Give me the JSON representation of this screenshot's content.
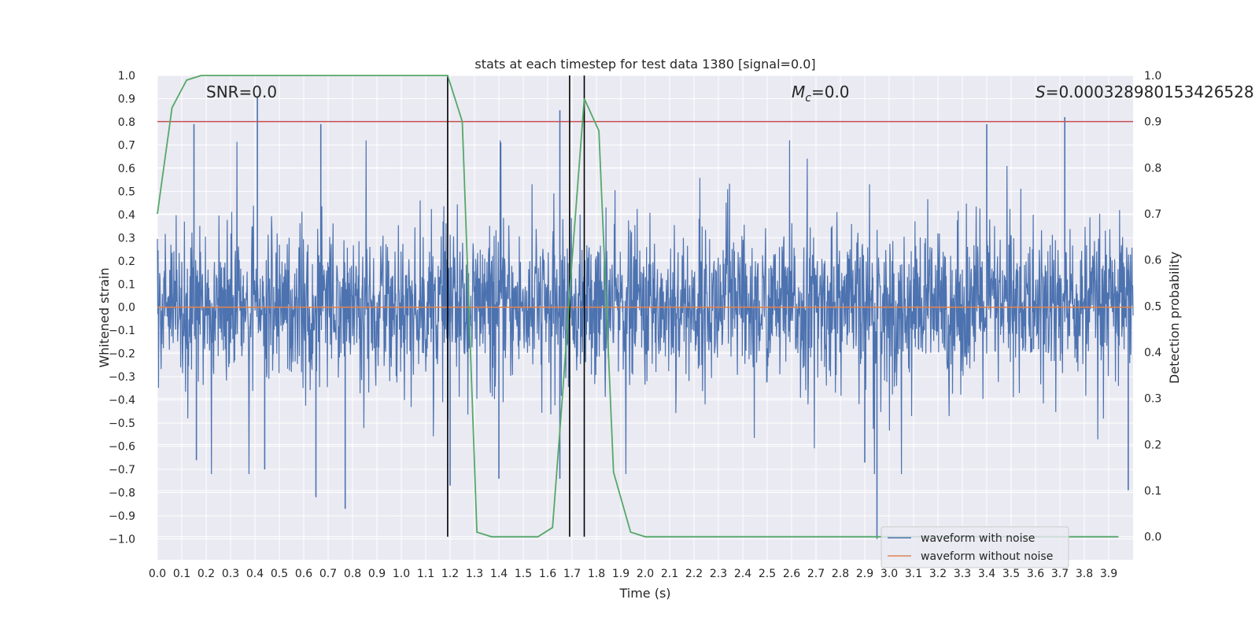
{
  "chart_data": {
    "type": "line",
    "title": "stats at each timestep for test data 1380 [signal=0.0]",
    "xlabel": "Time (s)",
    "ylabel": "Whitened strain",
    "y2label": "Detection probability",
    "xlim": [
      0.0,
      4.0
    ],
    "ylim": [
      -1.09,
      1.0
    ],
    "y2lim": [
      -0.05,
      1.0
    ],
    "x_ticks": [
      "0.0",
      "0.1",
      "0.2",
      "0.3",
      "0.4",
      "0.5",
      "0.6",
      "0.7",
      "0.8",
      "0.9",
      "1.0",
      "1.1",
      "1.2",
      "1.3",
      "1.4",
      "1.5",
      "1.6",
      "1.7",
      "1.8",
      "1.9",
      "2.0",
      "2.1",
      "2.2",
      "2.3",
      "2.4",
      "2.5",
      "2.6",
      "2.7",
      "2.8",
      "2.9",
      "3.0",
      "3.1",
      "3.2",
      "3.3",
      "3.4",
      "3.5",
      "3.6",
      "3.7",
      "3.8",
      "3.9"
    ],
    "y_ticks": [
      "1.0",
      "0.9",
      "0.8",
      "0.7",
      "0.6",
      "0.5",
      "0.4",
      "0.3",
      "0.2",
      "0.1",
      "0.0",
      "−0.1",
      "−0.2",
      "−0.3",
      "−0.4",
      "−0.5",
      "−0.6",
      "−0.7",
      "−0.8",
      "−0.9",
      "−1.0"
    ],
    "y2_ticks": [
      "1.0",
      "0.9",
      "0.8",
      "0.7",
      "0.6",
      "0.5",
      "0.4",
      "0.3",
      "0.2",
      "0.1",
      "0.0"
    ],
    "grid": true,
    "legend_position": "lower-right",
    "annotations": {
      "snr": "SNR=0.0",
      "mc_symbol": "M",
      "mc_sub": "c",
      "mc_value": "=0.0",
      "s_symbol": "S",
      "s_value": "=0.00032898015342652",
      "s_value_tail": "8"
    },
    "series": [
      {
        "name": "waveform with noise",
        "color": "#4c72b0",
        "axis": "left",
        "description_kind": "noise",
        "amplitude_core": 0.3,
        "peaks": [
          {
            "x": 0.41,
            "y": 0.91
          },
          {
            "x": 0.67,
            "y": 0.79
          },
          {
            "x": 0.65,
            "y": -0.82
          },
          {
            "x": 0.77,
            "y": -0.87
          },
          {
            "x": 1.65,
            "y": 0.85
          },
          {
            "x": 1.65,
            "y": -0.74
          },
          {
            "x": 2.95,
            "y": -1.0
          },
          {
            "x": 3.72,
            "y": 0.82
          },
          {
            "x": 3.4,
            "y": 0.79
          },
          {
            "x": 0.15,
            "y": 0.79
          },
          {
            "x": 0.16,
            "y": -0.66
          },
          {
            "x": 0.44,
            "y": -0.7
          },
          {
            "x": 1.2,
            "y": -0.77
          },
          {
            "x": 1.4,
            "y": -0.74
          },
          {
            "x": 2.9,
            "y": -0.67
          },
          {
            "x": 3.98,
            "y": -0.79
          }
        ]
      },
      {
        "name": "waveform without noise",
        "color": "#dd8452",
        "axis": "left",
        "x": [
          0.0,
          4.0
        ],
        "y": [
          0.0,
          0.0
        ]
      },
      {
        "name": "",
        "color": "#55a868",
        "axis": "right",
        "x": [
          0.0,
          0.06,
          0.12,
          0.18,
          0.25,
          0.31,
          0.37,
          0.43,
          0.49,
          0.55,
          0.62,
          0.68,
          0.74,
          0.8,
          0.86,
          0.92,
          0.98,
          1.05,
          1.11,
          1.17,
          1.19,
          1.25,
          1.31,
          1.37,
          1.44,
          1.5,
          1.56,
          1.62,
          1.66,
          1.7,
          1.75,
          1.81,
          1.87,
          1.94,
          2.0,
          2.06,
          2.5,
          3.0,
          3.5,
          3.94
        ],
        "y": [
          0.7,
          0.93,
          0.99,
          1.0,
          1.0,
          1.0,
          1.0,
          1.0,
          1.0,
          1.0,
          1.0,
          1.0,
          1.0,
          1.0,
          1.0,
          1.0,
          1.0,
          1.0,
          1.0,
          1.0,
          1.0,
          0.9,
          0.01,
          0.0,
          0.0,
          0.0,
          0.0,
          0.02,
          0.3,
          0.6,
          0.95,
          0.88,
          0.14,
          0.01,
          0.0,
          0.0,
          0.0,
          0.0,
          0.0,
          0.0
        ]
      }
    ],
    "threshold_line": {
      "axis": "right",
      "y": 0.9,
      "color": "#c44e52"
    },
    "vertical_lines": {
      "x": [
        1.19,
        1.69,
        1.75
      ],
      "ymin_right": 0.0,
      "ymax_right": 1.0,
      "color": "#000000"
    }
  }
}
